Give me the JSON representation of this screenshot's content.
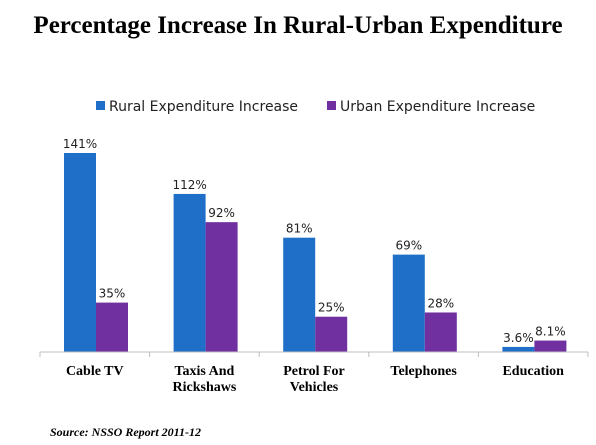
{
  "title": "Percentage Increase In Rural-Urban Expenditure",
  "source": "Source: NSSO Report 2011-12",
  "colors": {
    "rural": "#1f6fc8",
    "urban": "#7030a0",
    "axis": "#bfbfbf"
  },
  "chart_data": {
    "type": "bar",
    "categories": [
      [
        "Cable TV"
      ],
      [
        "Taxis And",
        "Rickshaws"
      ],
      [
        "Petrol For",
        "Vehicles"
      ],
      [
        "Telephones"
      ],
      [
        "Education"
      ]
    ],
    "series": [
      {
        "name": "Rural Expenditure Increase",
        "values": [
          141,
          112,
          81,
          69,
          3.6
        ],
        "labels": [
          "141%",
          "112%",
          "81%",
          "69%",
          "3.6%"
        ]
      },
      {
        "name": "Urban Expenditure Increase",
        "values": [
          35,
          92,
          25,
          28,
          8.1
        ],
        "labels": [
          "35%",
          "92%",
          "25%",
          "28%",
          "8.1%"
        ]
      }
    ],
    "ylim": [
      0,
      141
    ],
    "grid": false,
    "legend": "top"
  }
}
